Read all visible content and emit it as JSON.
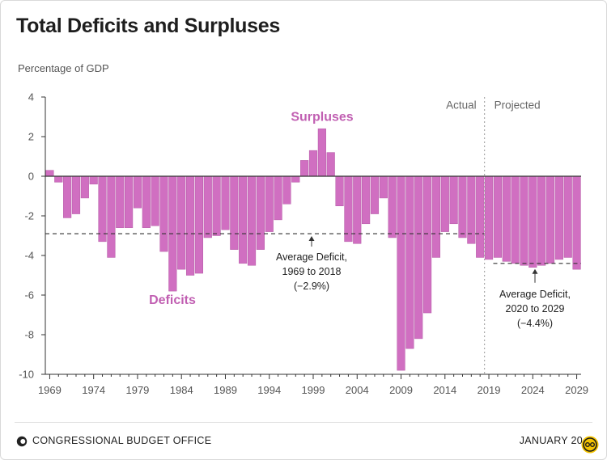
{
  "title": "Total Deficits and Surpluses",
  "footer": {
    "organization": "CONGRESSIONAL BUDGET OFFICE",
    "date": "JANUARY 20"
  },
  "colors": {
    "bar": "#d06fc1",
    "bar_stroke": "#b55aa6",
    "label_accent": "#c15fb2",
    "baseline": "#333333",
    "divider": "#aaaaaa"
  },
  "chart_data": {
    "type": "bar",
    "ylabel": "Percentage of GDP",
    "ylim": [
      -10,
      4
    ],
    "yticks": [
      4,
      2,
      0,
      -2,
      -4,
      -6,
      -8,
      -10
    ],
    "xtick_labels": [
      "1969",
      "1974",
      "1979",
      "1984",
      "1989",
      "1994",
      "1999",
      "2004",
      "2009",
      "2014",
      "2019",
      "2024",
      "2029"
    ],
    "grid": false,
    "regions": {
      "actual_label": "Actual",
      "projected_label": "Projected",
      "divider_between": [
        2018,
        2019
      ]
    },
    "labels": {
      "surpluses": "Surpluses",
      "deficits": "Deficits"
    },
    "years": [
      1969,
      1970,
      1971,
      1972,
      1973,
      1974,
      1975,
      1976,
      1977,
      1978,
      1979,
      1980,
      1981,
      1982,
      1983,
      1984,
      1985,
      1986,
      1987,
      1988,
      1989,
      1990,
      1991,
      1992,
      1993,
      1994,
      1995,
      1996,
      1997,
      1998,
      1999,
      2000,
      2001,
      2002,
      2003,
      2004,
      2005,
      2006,
      2007,
      2008,
      2009,
      2010,
      2011,
      2012,
      2013,
      2014,
      2015,
      2016,
      2017,
      2018,
      2019,
      2020,
      2021,
      2022,
      2023,
      2024,
      2025,
      2026,
      2027,
      2028,
      2029
    ],
    "values": [
      0.3,
      -0.3,
      -2.1,
      -1.9,
      -1.1,
      -0.4,
      -3.3,
      -4.1,
      -2.6,
      -2.6,
      -1.6,
      -2.6,
      -2.5,
      -3.8,
      -5.8,
      -4.7,
      -5.0,
      -4.9,
      -3.1,
      -3.0,
      -2.7,
      -3.7,
      -4.4,
      -4.5,
      -3.7,
      -2.8,
      -2.2,
      -1.4,
      -0.3,
      0.8,
      1.3,
      2.4,
      1.2,
      -1.5,
      -3.3,
      -3.4,
      -2.4,
      -1.9,
      -1.1,
      -3.1,
      -9.8,
      -8.7,
      -8.2,
      -6.9,
      -4.1,
      -2.8,
      -2.4,
      -3.1,
      -3.4,
      -4.1,
      -4.2,
      -4.1,
      -4.3,
      -4.4,
      -4.5,
      -4.6,
      -4.5,
      -4.4,
      -4.2,
      -4.1,
      -4.7
    ],
    "reference_lines": [
      {
        "value": -2.9,
        "from_year": 1969,
        "to_year": 2018,
        "label_lines": [
          "Average Deficit,",
          "1969 to 2018",
          "(−2.9%)"
        ]
      },
      {
        "value": -4.4,
        "from_year": 2020,
        "to_year": 2029,
        "label_lines": [
          "Average Deficit,",
          "2020 to 2029",
          "(−4.4%)"
        ]
      }
    ]
  }
}
